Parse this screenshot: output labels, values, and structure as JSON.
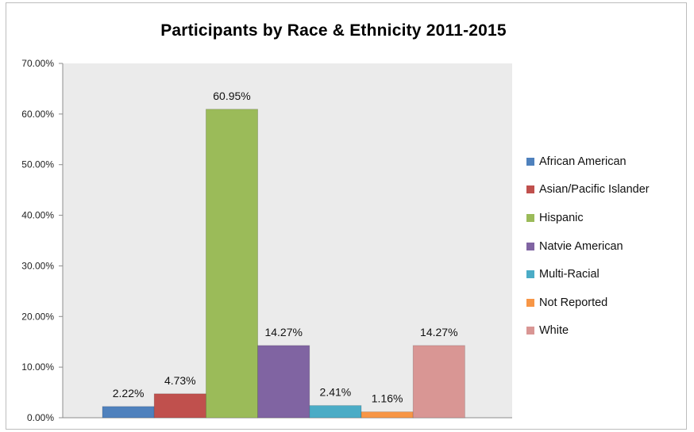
{
  "chart_data": {
    "type": "bar",
    "title": "Participants by Race & Ethnicity  2011-2015",
    "xlabel": "",
    "ylabel": "",
    "ylim": [
      0,
      70
    ],
    "yticks": [
      "0.00%",
      "10.00%",
      "20.00%",
      "30.00%",
      "40.00%",
      "50.00%",
      "60.00%",
      "70.00%"
    ],
    "grid": false,
    "legend_position": "right",
    "plot_background": "#ebebeb",
    "series": [
      {
        "name": "African American",
        "value": 2.22,
        "label": "2.22%",
        "color": "#4f81bd"
      },
      {
        "name": "Asian/Pacific Islander",
        "value": 4.73,
        "label": "4.73%",
        "color": "#c0504d"
      },
      {
        "name": "Hispanic",
        "value": 60.95,
        "label": "60.95%",
        "color": "#9bbb59"
      },
      {
        "name": "Natvie American",
        "value": 14.27,
        "label": "14.27%",
        "color": "#8064a2"
      },
      {
        "name": "Multi-Racial",
        "value": 2.41,
        "label": "2.41%",
        "color": "#4bacc6"
      },
      {
        "name": "Not Reported",
        "value": 1.16,
        "label": "1.16%",
        "color": "#f79646"
      },
      {
        "name": "White",
        "value": 14.27,
        "label": "14.27%",
        "color": "#d99694"
      }
    ]
  }
}
